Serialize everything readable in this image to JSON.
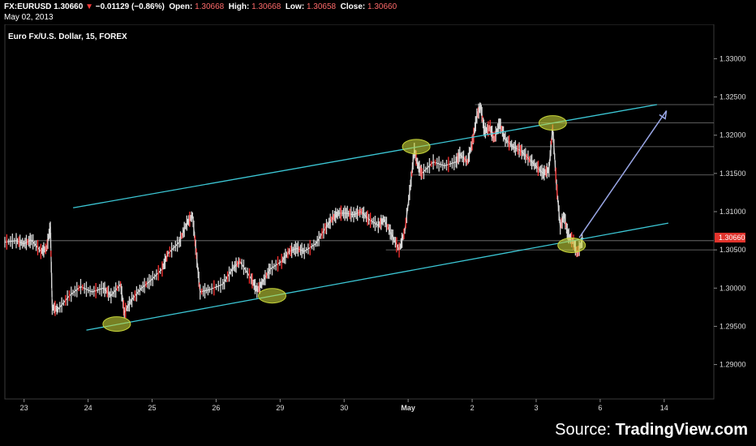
{
  "header": {
    "symbol": "FX:EURUSD",
    "price": "1.30660",
    "change": "−0.01129 (−0.86%)",
    "open_label": "Open:",
    "open": "1.30668",
    "high_label": "High:",
    "high": "1.30668",
    "low_label": "Low:",
    "low": "1.30658",
    "close_label": "Close:",
    "close": "1.30660",
    "date": "May 02, 2013"
  },
  "title": "Euro Fx/U.S. Dollar, 15, FOREX",
  "source_prefix": "Source: ",
  "source_name": "TradingView.com",
  "colors": {
    "background": "#000000",
    "candle_up": "#d8d8d8",
    "candle_down": "#ff3333",
    "channel": "#3cc8d6",
    "arrow": "#9aa7e6",
    "marker": "#c8d63a",
    "last_price_badge": "#e2332c"
  },
  "chart_data": {
    "type": "line",
    "symbol": "EUR/USD",
    "interval": "15",
    "x_ticks": [
      "23",
      "24",
      "25",
      "26",
      "29",
      "30",
      "May",
      "2",
      "3",
      "6",
      "14"
    ],
    "y_ticks": [
      "1.29000",
      "1.29500",
      "1.30000",
      "1.30500",
      "1.31000",
      "1.31500",
      "1.32000",
      "1.32500",
      "1.33000"
    ],
    "ylim": [
      1.2855,
      1.3345
    ],
    "last_price": 1.3066,
    "grid": false,
    "series": [
      {
        "values": [
          [
            0,
            1.306
          ],
          [
            0.3,
            1.3062
          ],
          [
            0.5,
            1.3058
          ],
          [
            0.7,
            1.3063
          ],
          [
            0.95,
            1.3048
          ],
          [
            1.1,
            1.3052
          ],
          [
            1.2,
            1.308
          ],
          [
            1.25,
            1.2975
          ],
          [
            1.4,
            1.2972
          ],
          [
            1.7,
            1.299
          ],
          [
            2.0,
            1.3002
          ],
          [
            2.3,
            1.2995
          ],
          [
            2.6,
            1.3
          ],
          [
            2.8,
            1.299
          ],
          [
            3.05,
            1.3005
          ],
          [
            3.15,
            1.2968
          ],
          [
            3.35,
            1.2985
          ],
          [
            3.6,
            1.3
          ],
          [
            3.85,
            1.301
          ],
          [
            4.15,
            1.3025
          ],
          [
            4.3,
            1.3045
          ],
          [
            4.6,
            1.306
          ],
          [
            4.8,
            1.3085
          ],
          [
            4.95,
            1.3095
          ],
          [
            5.05,
            1.3045
          ],
          [
            5.15,
            1.2995
          ],
          [
            5.4,
            1.2998
          ],
          [
            5.75,
            1.3005
          ],
          [
            6.0,
            1.3025
          ],
          [
            6.2,
            1.3035
          ],
          [
            6.5,
            1.3012
          ],
          [
            6.65,
            1.2997
          ],
          [
            6.8,
            1.3008
          ],
          [
            7.0,
            1.3025
          ],
          [
            7.3,
            1.3035
          ],
          [
            7.5,
            1.3048
          ],
          [
            7.7,
            1.3052
          ],
          [
            7.9,
            1.3048
          ],
          [
            8.2,
            1.3058
          ],
          [
            8.45,
            1.3078
          ],
          [
            8.65,
            1.3092
          ],
          [
            8.8,
            1.3098
          ],
          [
            9.0,
            1.3098
          ],
          [
            9.2,
            1.3096
          ],
          [
            9.4,
            1.31
          ],
          [
            9.6,
            1.309
          ],
          [
            9.85,
            1.3082
          ],
          [
            10.0,
            1.309
          ],
          [
            10.2,
            1.307
          ],
          [
            10.4,
            1.305
          ],
          [
            10.55,
            1.3075
          ],
          [
            10.7,
            1.3135
          ],
          [
            10.8,
            1.318
          ],
          [
            10.9,
            1.316
          ],
          [
            11.0,
            1.315
          ],
          [
            11.3,
            1.3165
          ],
          [
            11.6,
            1.316
          ],
          [
            11.9,
            1.3165
          ],
          [
            12.0,
            1.3175
          ],
          [
            12.2,
            1.3165
          ],
          [
            12.35,
            1.3195
          ],
          [
            12.45,
            1.3225
          ],
          [
            12.55,
            1.3238
          ],
          [
            12.65,
            1.3205
          ],
          [
            12.8,
            1.321
          ],
          [
            12.9,
            1.3195
          ],
          [
            13.05,
            1.3215
          ],
          [
            13.2,
            1.3195
          ],
          [
            13.4,
            1.3185
          ],
          [
            13.6,
            1.318
          ],
          [
            13.8,
            1.317
          ],
          [
            14.0,
            1.316
          ],
          [
            14.2,
            1.315
          ],
          [
            14.35,
            1.3155
          ],
          [
            14.45,
            1.321
          ],
          [
            14.55,
            1.3135
          ],
          [
            14.65,
            1.308
          ],
          [
            14.75,
            1.3095
          ],
          [
            14.85,
            1.307
          ],
          [
            15.0,
            1.306
          ],
          [
            15.1,
            1.3045
          ],
          [
            15.25,
            1.3066
          ]
        ]
      }
    ],
    "annotations": {
      "channel_upper": [
        [
          1.8,
          1.3105
        ],
        [
          17.2,
          1.324
        ]
      ],
      "channel_lower": [
        [
          2.15,
          1.2945
        ],
        [
          17.5,
          1.3085
        ]
      ],
      "arrow": [
        [
          15.15,
          1.3066
        ],
        [
          17.45,
          1.3232
        ]
      ],
      "ellipses": [
        [
          2.95,
          1.2953
        ],
        [
          7.05,
          1.299
        ],
        [
          10.85,
          1.3185
        ],
        [
          14.45,
          1.3216
        ],
        [
          14.95,
          1.3056
        ]
      ],
      "h_levels": [
        [
          12.4,
          18.7,
          1.324
        ],
        [
          12.55,
          18.7,
          1.3216
        ],
        [
          12.8,
          18.7,
          1.3185
        ],
        [
          10.75,
          18.7,
          1.3148
        ],
        [
          0,
          18.7,
          1.3062
        ],
        [
          10.05,
          18.7,
          1.305
        ]
      ]
    }
  }
}
